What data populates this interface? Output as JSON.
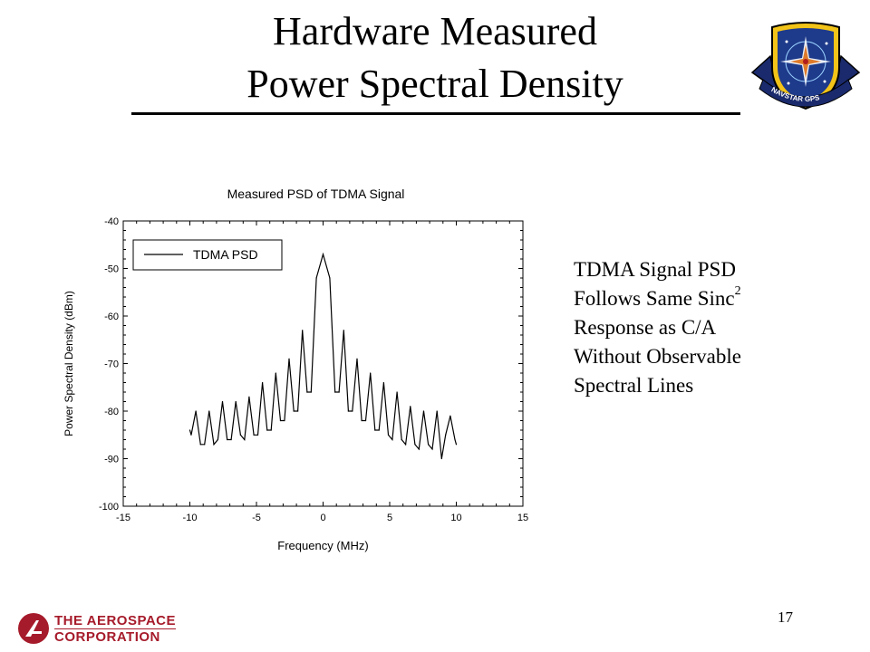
{
  "slide": {
    "title_line1": "Hardware Measured",
    "title_line2": "Power Spectral Density",
    "bullet_lines": [
      "TDMA Signal PSD",
      "Follows Same Sinc",
      "Response  as C/A",
      "Without Observable",
      "Spectral Lines"
    ],
    "bullet_superscript": "2",
    "page_number": "17",
    "logo_text": "NAVSTAR GPS",
    "corp_line1": "THE AEROSPACE",
    "corp_line2": "CORPORATION",
    "corp_color": "#a61b2b"
  },
  "chart_data": {
    "type": "line",
    "title": "Measured PSD of TDMA Signal",
    "xlabel": "Frequency (MHz)",
    "ylabel": "Power Spectral Density (dBm)",
    "xlim": [
      -15,
      15
    ],
    "ylim": [
      -100,
      -40
    ],
    "xticks": [
      -15,
      -10,
      -5,
      0,
      5,
      10,
      15
    ],
    "yticks": [
      -40,
      -50,
      -60,
      -70,
      -80,
      -90,
      -100
    ],
    "grid": false,
    "legend_position": "top-left",
    "series": [
      {
        "name": "TDMA PSD",
        "x": [
          -10.0,
          -9.9,
          -9.55,
          -9.2,
          -8.9,
          -8.55,
          -8.2,
          -7.9,
          -7.55,
          -7.2,
          -6.9,
          -6.55,
          -6.2,
          -5.9,
          -5.55,
          -5.2,
          -4.9,
          -4.55,
          -4.2,
          -3.9,
          -3.55,
          -3.2,
          -2.9,
          -2.55,
          -2.2,
          -1.9,
          -1.55,
          -1.2,
          -0.9,
          -0.5,
          0.0,
          0.5,
          0.9,
          1.2,
          1.55,
          1.9,
          2.2,
          2.55,
          2.9,
          3.2,
          3.55,
          3.9,
          4.2,
          4.55,
          4.9,
          5.2,
          5.55,
          5.9,
          6.2,
          6.55,
          6.9,
          7.2,
          7.55,
          7.9,
          8.2,
          8.55,
          8.9,
          9.2,
          9.55,
          9.9,
          10.0
        ],
        "y": [
          -84,
          -85,
          -80,
          -87,
          -87,
          -80,
          -87,
          -86,
          -78,
          -86,
          -86,
          -78,
          -85,
          -86,
          -77,
          -85,
          -85,
          -74,
          -84,
          -84,
          -72,
          -82,
          -82,
          -69,
          -80,
          -80,
          -63,
          -76,
          -76,
          -52,
          -47,
          -52,
          -76,
          -76,
          -63,
          -80,
          -80,
          -69,
          -82,
          -82,
          -72,
          -84,
          -84,
          -74,
          -85,
          -86,
          -76,
          -86,
          -87,
          -79,
          -87,
          -88,
          -80,
          -87,
          -88,
          -80,
          -90,
          -85,
          -81,
          -86,
          -87
        ]
      }
    ]
  }
}
